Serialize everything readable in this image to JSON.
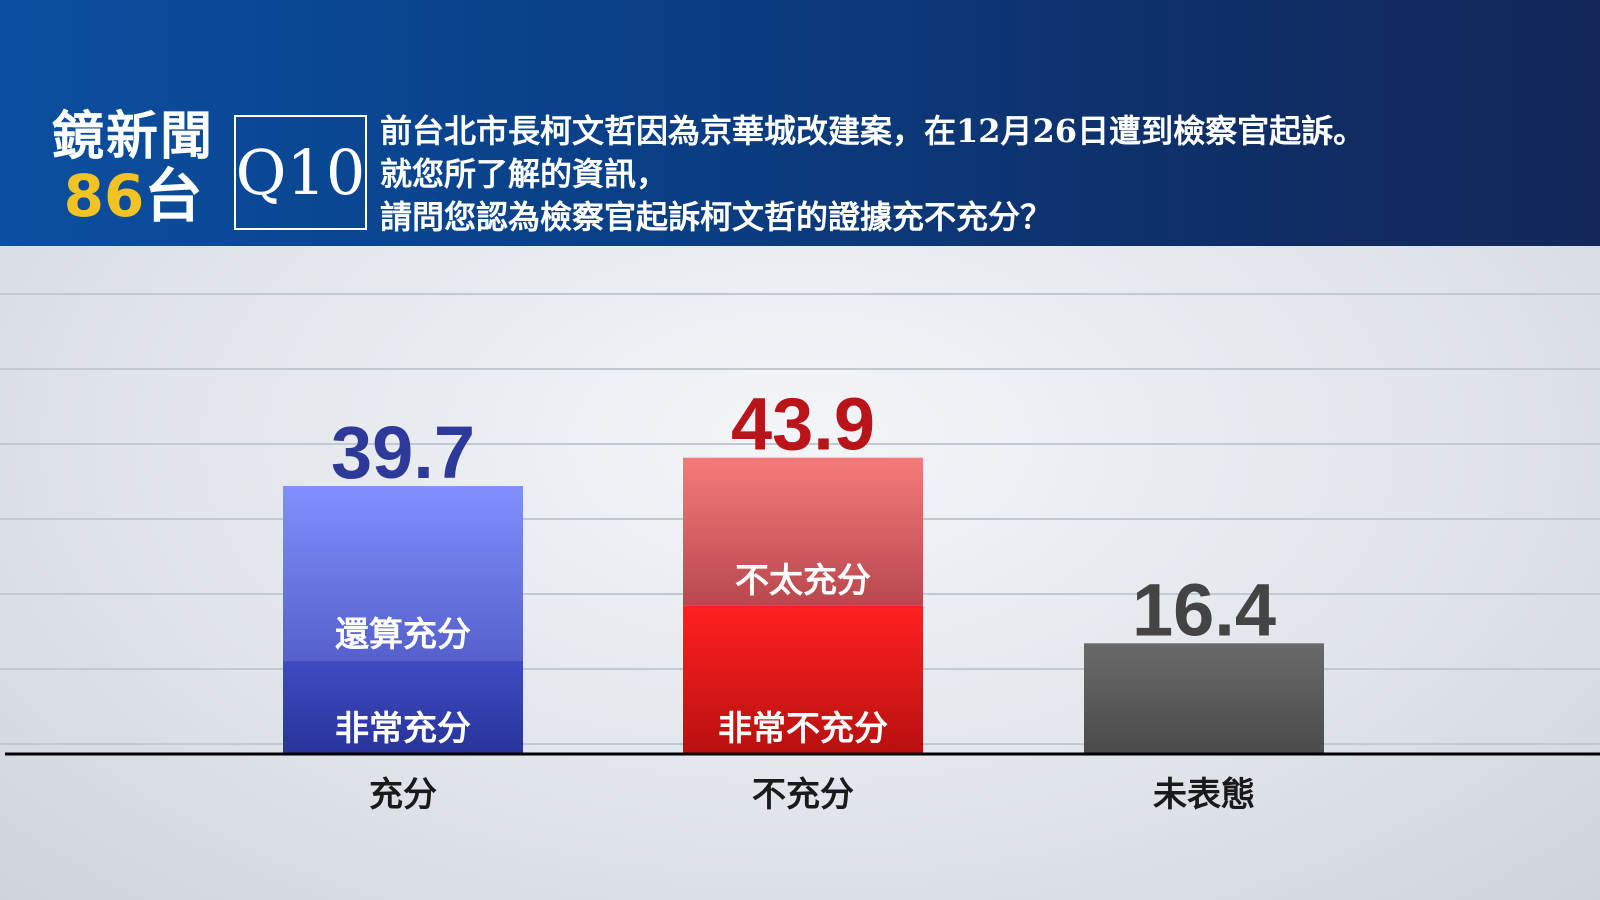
{
  "header": {
    "logo_main": "鏡新聞",
    "logo_num": "86",
    "logo_tai": "台",
    "question_no": "Q10",
    "question_lines": [
      "前台北市長柯文哲因為京華城改建案，在12月26日遭到檢察官起訴。",
      "就您所了解的資訊，",
      "請問您認為檢察官起訴柯文哲的證據充不充分？"
    ],
    "unit": "(%)"
  },
  "colors": {
    "brand_blue": "#0b4fa0",
    "logo_yellow": "#f3c325",
    "blue_total": "#2e3a9a",
    "red_total": "#b81419",
    "gray_total": "#444444"
  },
  "chart_data": {
    "type": "bar",
    "categories": [
      "充分",
      "不充分",
      "未表態"
    ],
    "values": [
      39.7,
      43.9,
      16.4
    ],
    "stacked_segments": [
      [
        {
          "label": "非常充分"
        },
        {
          "label": "還算充分"
        }
      ],
      [
        {
          "label": "非常不充分"
        },
        {
          "label": "不太充分"
        }
      ],
      []
    ],
    "ylim": [
      0,
      50
    ],
    "grid": true,
    "legend": "none"
  }
}
